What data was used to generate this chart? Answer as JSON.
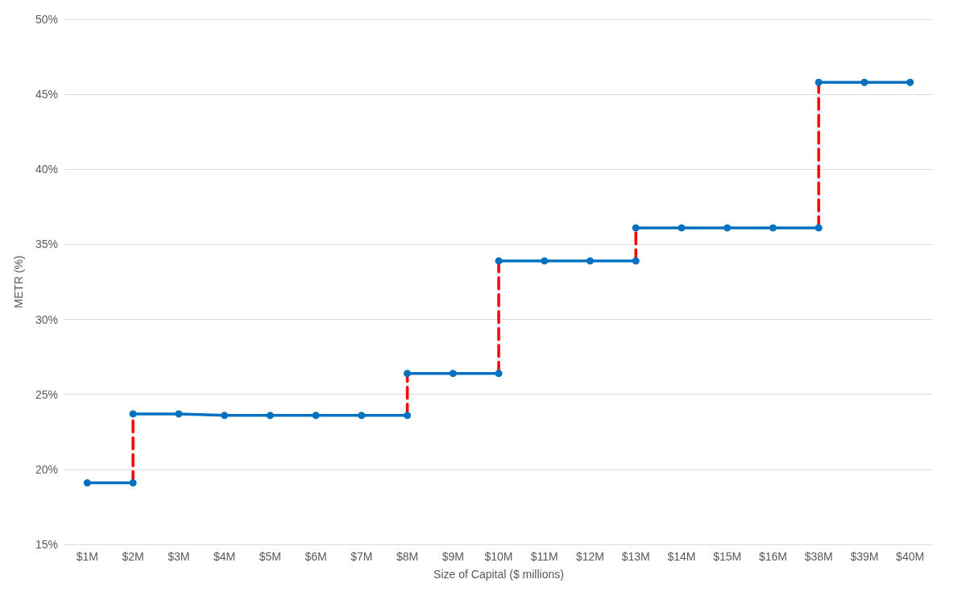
{
  "chart_data": {
    "type": "line",
    "xlabel": "Size of Capital ($ millions)",
    "ylabel": "METR (%)",
    "categories": [
      "$1M",
      "$2M",
      "$3M",
      "$4M",
      "$5M",
      "$6M",
      "$7M",
      "$8M",
      "$9M",
      "$10M",
      "$11M",
      "$12M",
      "$13M",
      "$14M",
      "$15M",
      "$16M",
      "$38M",
      "$39M",
      "$40M"
    ],
    "series": [
      {
        "color": "#ff0000",
        "line_style": "dashed",
        "marker": "none",
        "x": [
          "$2M",
          "$2M"
        ],
        "values": [
          19.1,
          23.7
        ]
      },
      {
        "color": "#ff0000",
        "line_style": "dashed",
        "marker": "none",
        "x": [
          "$8M",
          "$8M"
        ],
        "values": [
          23.6,
          26.4
        ]
      },
      {
        "color": "#ff0000",
        "line_style": "dashed",
        "marker": "none",
        "x": [
          "$10M",
          "$10M"
        ],
        "values": [
          26.4,
          33.9
        ]
      },
      {
        "color": "#ff0000",
        "line_style": "dashed",
        "marker": "none",
        "x": [
          "$13M",
          "$13M"
        ],
        "values": [
          33.9,
          36.1
        ]
      },
      {
        "color": "#ff0000",
        "line_style": "dashed",
        "marker": "none",
        "x": [
          "$38M",
          "$38M"
        ],
        "values": [
          36.1,
          45.8
        ]
      },
      {
        "color": "#0070c0",
        "line_style": "solid",
        "marker": "circle",
        "x": [
          "$1M",
          "$2M"
        ],
        "values": [
          19.1,
          19.1
        ]
      },
      {
        "color": "#0070c0",
        "line_style": "solid",
        "marker": "circle",
        "x": [
          "$2M",
          "$3M",
          "$4M",
          "$5M",
          "$6M",
          "$7M",
          "$8M"
        ],
        "values": [
          23.7,
          23.7,
          23.6,
          23.6,
          23.6,
          23.6,
          23.6
        ]
      },
      {
        "color": "#0070c0",
        "line_style": "solid",
        "marker": "circle",
        "x": [
          "$8M",
          "$9M",
          "$10M"
        ],
        "values": [
          26.4,
          26.4,
          26.4
        ]
      },
      {
        "color": "#0070c0",
        "line_style": "solid",
        "marker": "circle",
        "x": [
          "$10M",
          "$11M",
          "$12M",
          "$13M"
        ],
        "values": [
          33.9,
          33.9,
          33.9,
          33.9
        ]
      },
      {
        "color": "#0070c0",
        "line_style": "solid",
        "marker": "circle",
        "x": [
          "$13M",
          "$14M",
          "$15M",
          "$16M",
          "$38M"
        ],
        "values": [
          36.1,
          36.1,
          36.1,
          36.1,
          36.1
        ]
      },
      {
        "color": "#0070c0",
        "line_style": "solid",
        "marker": "circle",
        "x": [
          "$38M",
          "$39M",
          "$40M"
        ],
        "values": [
          45.8,
          45.8,
          45.8
        ]
      }
    ],
    "ylim": [
      15,
      50
    ],
    "yticks": [
      {
        "value": 15,
        "label": "15%"
      },
      {
        "value": 20,
        "label": "20%"
      },
      {
        "value": 25,
        "label": "25%"
      },
      {
        "value": 30,
        "label": "30%"
      },
      {
        "value": 35,
        "label": "35%"
      },
      {
        "value": 40,
        "label": "40%"
      },
      {
        "value": 45,
        "label": "45%"
      },
      {
        "value": 50,
        "label": "50%"
      }
    ],
    "grid": "y"
  }
}
